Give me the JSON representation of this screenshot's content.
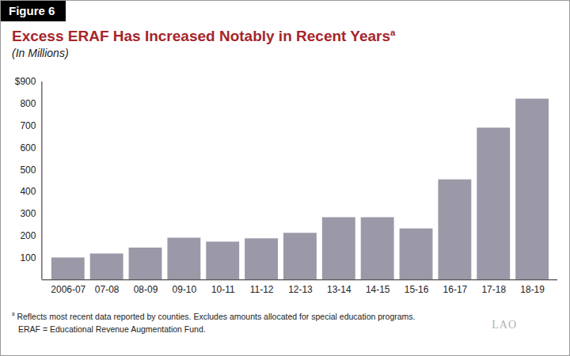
{
  "chart_data": {
    "type": "bar",
    "figure_label": "Figure 6",
    "title": "Excess ERAF Has Increased Notably in Recent Years",
    "title_note_mark": "a",
    "subtitle": "(In Millions)",
    "categories": [
      "2006-07",
      "07-08",
      "08-09",
      "09-10",
      "10-11",
      "11-12",
      "12-13",
      "13-14",
      "14-15",
      "15-16",
      "16-17",
      "17-18",
      "18-19"
    ],
    "values": [
      100,
      118,
      145,
      190,
      172,
      187,
      212,
      283,
      283,
      232,
      455,
      690,
      822
    ],
    "color": "#9b99a8",
    "ylim": [
      0,
      900
    ],
    "yticks": [
      100,
      200,
      300,
      400,
      500,
      600,
      700,
      800,
      {
        "value": 900,
        "label": "$900"
      }
    ],
    "grid": false,
    "data_labels": false,
    "footnotes": [
      {
        "mark": "a",
        "text": "Reflects most recent data reported by counties. Excludes amounts allocated for special education programs."
      },
      {
        "mark": null,
        "text": "ERAF = Educational Revenue Augmentation Fund."
      }
    ],
    "logo": "LAO"
  }
}
